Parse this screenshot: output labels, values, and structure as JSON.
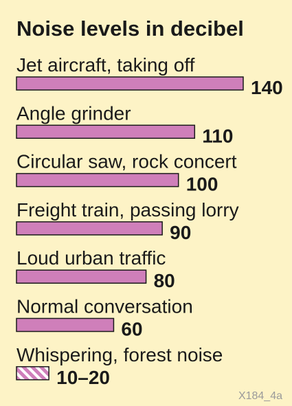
{
  "chart_data": {
    "type": "bar",
    "orientation": "horizontal",
    "title": "Noise levels in decibel",
    "categories": [
      "Jet aircraft, taking off",
      "Angle grinder",
      "Circular saw, rock concert",
      "Freight train, passing lorry",
      "Loud urban traffic",
      "Normal conversation",
      "Whispering, forest noise"
    ],
    "values": [
      140,
      110,
      100,
      90,
      80,
      60,
      [
        10,
        20
      ]
    ],
    "value_labels": [
      "140",
      "110",
      "100",
      "90",
      "80",
      "60",
      "10–20"
    ],
    "bar_color": "#cf7fba",
    "hatched_last_bar": true,
    "xlim": [
      0,
      140
    ],
    "grid": false
  },
  "credit": "X184_4a",
  "colors": {
    "background": "#fdf3c6",
    "bar": "#cf7fba",
    "outline": "#1a1a1a",
    "text": "#1a1a1a",
    "credit": "#9a9a9a"
  }
}
